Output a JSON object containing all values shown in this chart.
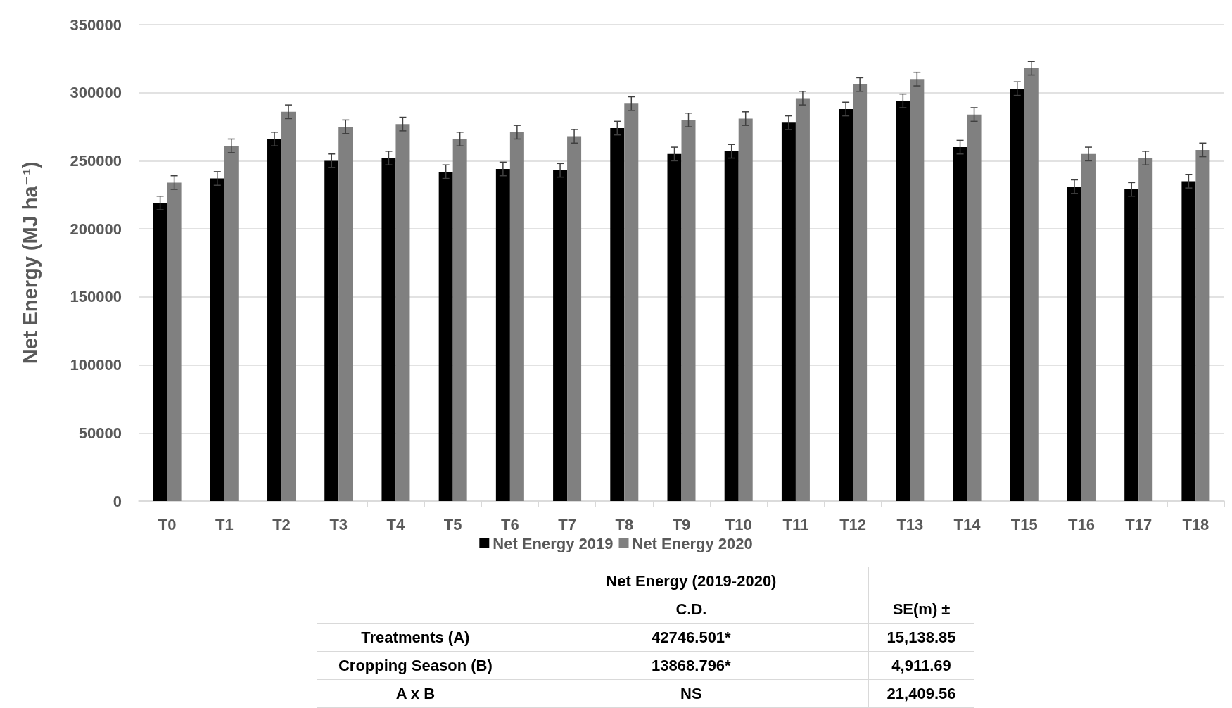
{
  "chart_data": {
    "type": "bar",
    "ylabel": "Net Energy (MJ ha⁻¹)",
    "categories": [
      "T0",
      "T1",
      "T2",
      "T3",
      "T4",
      "T5",
      "T6",
      "T7",
      "T8",
      "T9",
      "T10",
      "T11",
      "T12",
      "T13",
      "T14",
      "T15",
      "T16",
      "T17",
      "T18"
    ],
    "series": [
      {
        "name": "Net Energy 2019",
        "color": "#000000",
        "values": [
          219000,
          237000,
          266000,
          250000,
          252000,
          242000,
          244000,
          243000,
          274000,
          255000,
          257000,
          278000,
          288000,
          294000,
          260000,
          303000,
          231000,
          229000,
          235000
        ],
        "errors": [
          5000,
          5000,
          5000,
          5000,
          5000,
          5000,
          5000,
          5000,
          5000,
          5000,
          5000,
          5000,
          5000,
          5000,
          5000,
          5000,
          5000,
          5000,
          5000
        ]
      },
      {
        "name": "Net Energy 2020",
        "color": "#808080",
        "values": [
          234000,
          261000,
          286000,
          275000,
          277000,
          266000,
          271000,
          268000,
          292000,
          280000,
          281000,
          296000,
          306000,
          310000,
          284000,
          318000,
          255000,
          252000,
          258000
        ],
        "errors": [
          5000,
          5000,
          5000,
          5000,
          5000,
          5000,
          5000,
          5000,
          5000,
          5000,
          5000,
          5000,
          5000,
          5000,
          5000,
          5000,
          5000,
          5000,
          5000
        ]
      }
    ],
    "ylim": [
      0,
      350000
    ],
    "yticks": [
      0,
      50000,
      100000,
      150000,
      200000,
      250000,
      300000,
      350000
    ],
    "grid": "y",
    "legend": "bottom",
    "annotations": [
      "Net Energy (2019-2020)",
      "C.D.",
      "SE(m) ±",
      "Treatments (A)",
      "42746.501*",
      "15,138.85",
      "Cropping Season (B)",
      "13868.796*",
      "4,911.69",
      "A x B",
      "NS",
      "21,409.56"
    ]
  }
}
